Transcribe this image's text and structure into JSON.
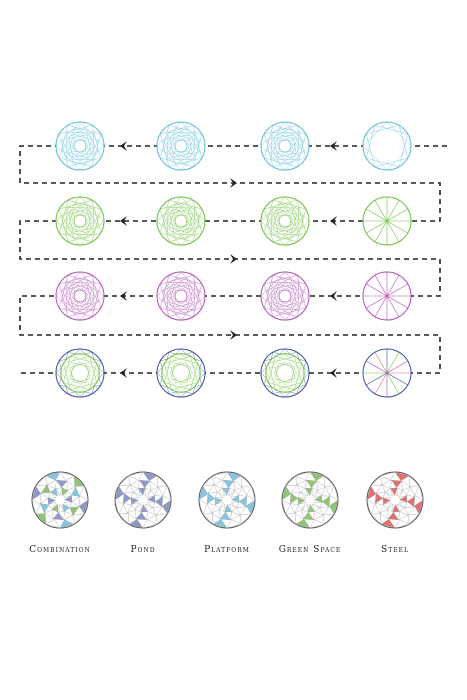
{
  "legend": [
    {
      "label": "Combination",
      "kind": "combination"
    },
    {
      "label": "Pond",
      "kind": "pond"
    },
    {
      "label": "Platform",
      "kind": "platform"
    },
    {
      "label": "Green Space",
      "kind": "green"
    },
    {
      "label": "Steel",
      "kind": "steel"
    }
  ],
  "colors": {
    "cyan": "#5bbcd6",
    "green": "#6bbf3a",
    "purple": "#b04fb8",
    "navy": "#3a4fa0",
    "pond": "#8a93c4",
    "platform": "#7ec3e0",
    "greenspace": "#8cc26e",
    "steel": "#e06a6a",
    "outline": "#555555",
    "path": "#222222"
  },
  "rows": [
    {
      "stroke": "cyan",
      "direction": "left"
    },
    {
      "stroke": "green",
      "direction": "left"
    },
    {
      "stroke": "purple",
      "direction": "left"
    },
    {
      "stroke": "mixed",
      "direction": "left"
    }
  ]
}
